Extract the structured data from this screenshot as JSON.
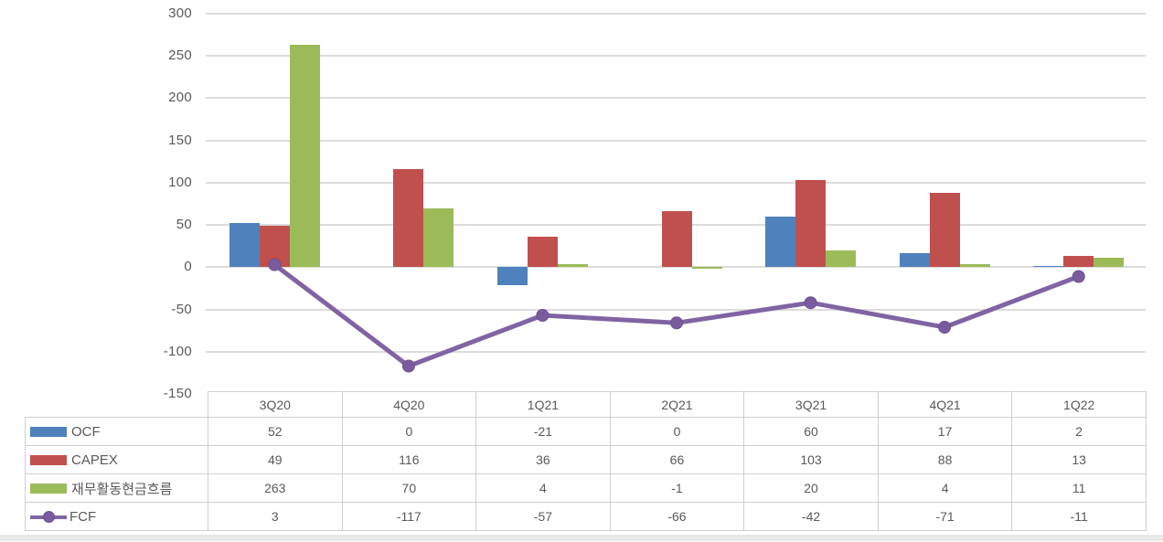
{
  "chart_data": {
    "type": "bar",
    "subtype": "combo-bar-line",
    "title": "",
    "xlabel": "",
    "ylabel": "",
    "categories": [
      "3Q20",
      "4Q20",
      "1Q21",
      "2Q21",
      "3Q21",
      "4Q21",
      "1Q22"
    ],
    "series": [
      {
        "name": "OCF",
        "chart_type": "bar",
        "color": "#4F81BD",
        "values": [
          52,
          0,
          -21,
          0,
          60,
          17,
          2
        ]
      },
      {
        "name": "CAPEX",
        "chart_type": "bar",
        "color": "#C0504D",
        "values": [
          49,
          116,
          36,
          66,
          103,
          88,
          13
        ]
      },
      {
        "name": "재무활동현금흐름",
        "chart_type": "bar",
        "color": "#9BBB59",
        "values": [
          263,
          70,
          4,
          -1,
          20,
          4,
          11
        ]
      },
      {
        "name": "FCF",
        "chart_type": "line",
        "color": "#8064A2",
        "values": [
          3,
          -117,
          -57,
          -66,
          -42,
          -71,
          -11
        ]
      }
    ],
    "ylim": [
      -150,
      300
    ],
    "yticks": [
      300,
      250,
      200,
      150,
      100,
      50,
      0,
      -50,
      -100,
      -150
    ],
    "grid": true,
    "legend_position": "data-table-left-column"
  },
  "colors": {
    "gridline": "#DCDCDC",
    "axis_text": "#595959",
    "table_border": "#D0CECE",
    "table_text": "#595959",
    "line_marker_fill": "#7A5B9E",
    "line_marker_edge": "#6D5192",
    "bottom_strip": "#E8E8E8"
  }
}
